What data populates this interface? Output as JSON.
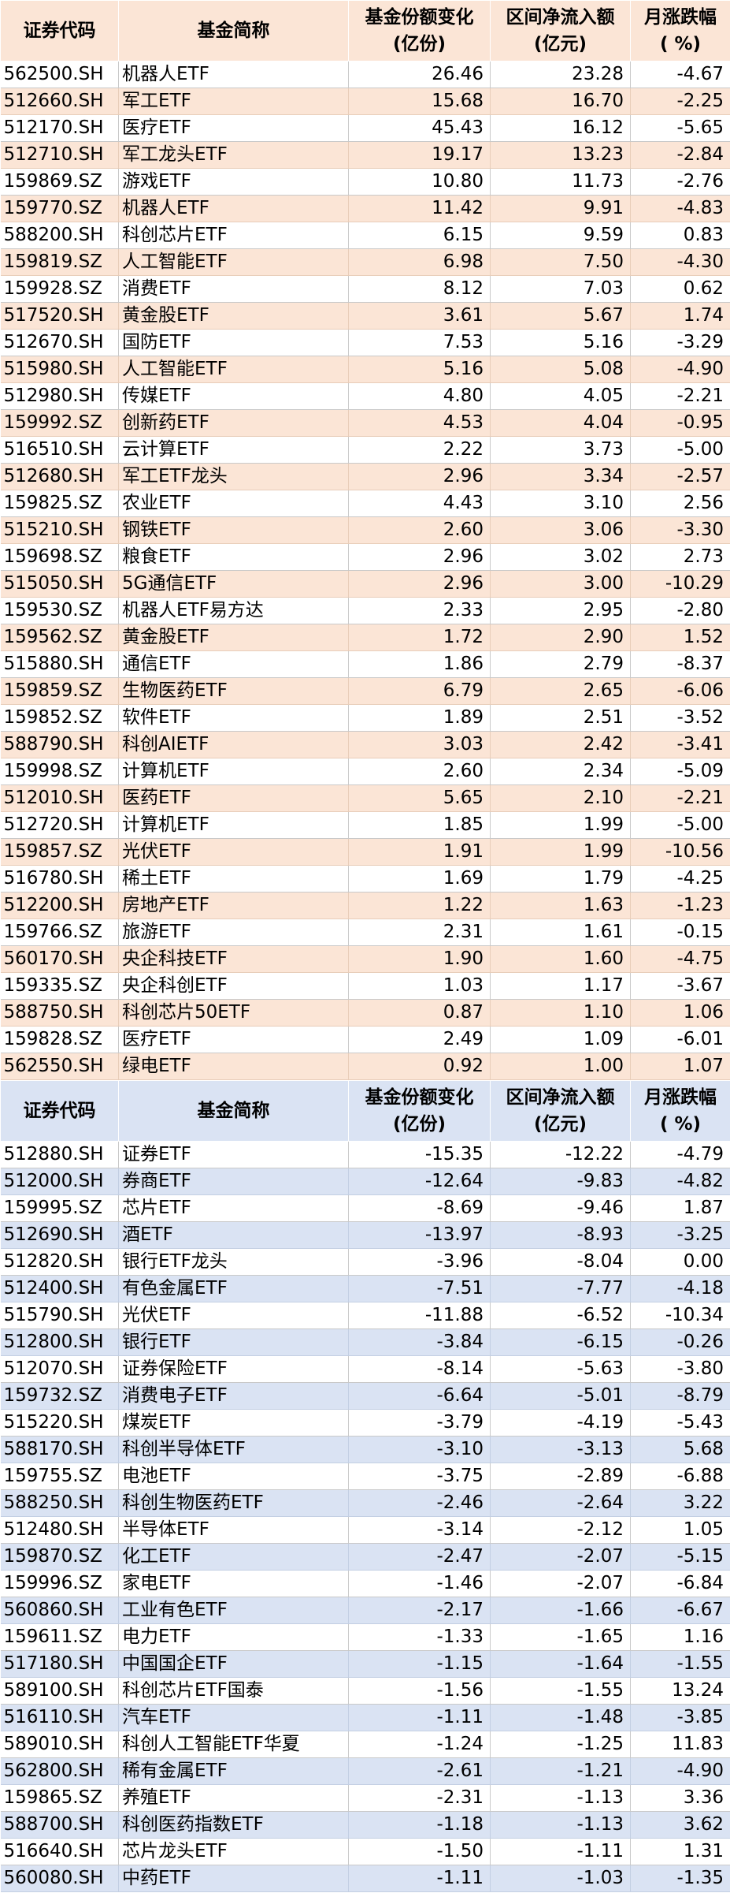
{
  "inflow_table": {
    "headers": [
      "证券代码",
      "基金简称",
      "基金份额变化",
      "(亿份)",
      "区间净流入额",
      "(亿元)",
      "月涨跌幅",
      "( %)"
    ],
    "rows": [
      [
        "562500.SH",
        "机器人ETF",
        "26.46",
        "23.28",
        "-4.67"
      ],
      [
        "512660.SH",
        "军工ETF",
        "15.68",
        "16.70",
        "-2.25"
      ],
      [
        "512170.SH",
        "医疗ETF",
        "45.43",
        "16.12",
        "-5.65"
      ],
      [
        "512710.SH",
        "军工龙头ETF",
        "19.17",
        "13.23",
        "-2.84"
      ],
      [
        "159869.SZ",
        "游戏ETF",
        "10.80",
        "11.73",
        "-2.76"
      ],
      [
        "159770.SZ",
        "机器人ETF",
        "11.42",
        "9.91",
        "-4.83"
      ],
      [
        "588200.SH",
        "科创芯片ETF",
        "6.15",
        "9.59",
        "0.83"
      ],
      [
        "159819.SZ",
        "人工智能ETF",
        "6.98",
        "7.50",
        "-4.30"
      ],
      [
        "159928.SZ",
        "消费ETF",
        "8.12",
        "7.03",
        "0.62"
      ],
      [
        "517520.SH",
        "黄金股ETF",
        "3.61",
        "5.67",
        "1.74"
      ],
      [
        "512670.SH",
        "国防ETF",
        "7.53",
        "5.16",
        "-3.29"
      ],
      [
        "515980.SH",
        "人工智能ETF",
        "5.16",
        "5.08",
        "-4.90"
      ],
      [
        "512980.SH",
        "传媒ETF",
        "4.80",
        "4.05",
        "-2.21"
      ],
      [
        "159992.SZ",
        "创新药ETF",
        "4.53",
        "4.04",
        "-0.95"
      ],
      [
        "516510.SH",
        "云计算ETF",
        "2.22",
        "3.73",
        "-5.00"
      ],
      [
        "512680.SH",
        "军工ETF龙头",
        "2.96",
        "3.34",
        "-2.57"
      ],
      [
        "159825.SZ",
        "农业ETF",
        "4.43",
        "3.10",
        "2.56"
      ],
      [
        "515210.SH",
        "钢铁ETF",
        "2.60",
        "3.06",
        "-3.30"
      ],
      [
        "159698.SZ",
        "粮食ETF",
        "2.96",
        "3.02",
        "2.73"
      ],
      [
        "515050.SH",
        "5G通信ETF",
        "2.96",
        "3.00",
        "-10.29"
      ],
      [
        "159530.SZ",
        "机器人ETF易方达",
        "2.33",
        "2.95",
        "-2.80"
      ],
      [
        "159562.SZ",
        "黄金股ETF",
        "1.72",
        "2.90",
        "1.52"
      ],
      [
        "515880.SH",
        "通信ETF",
        "1.86",
        "2.79",
        "-8.37"
      ],
      [
        "159859.SZ",
        "生物医药ETF",
        "6.79",
        "2.65",
        "-6.06"
      ],
      [
        "159852.SZ",
        "软件ETF",
        "1.89",
        "2.51",
        "-3.52"
      ],
      [
        "588790.SH",
        "科创AIETF",
        "3.03",
        "2.42",
        "-3.41"
      ],
      [
        "159998.SZ",
        "计算机ETF",
        "2.60",
        "2.34",
        "-5.09"
      ],
      [
        "512010.SH",
        "医药ETF",
        "5.65",
        "2.10",
        "-2.21"
      ],
      [
        "512720.SH",
        "计算机ETF",
        "1.85",
        "1.99",
        "-5.00"
      ],
      [
        "159857.SZ",
        "光伏ETF",
        "1.91",
        "1.99",
        "-10.56"
      ],
      [
        "516780.SH",
        "稀土ETF",
        "1.69",
        "1.79",
        "-4.25"
      ],
      [
        "512200.SH",
        "房地产ETF",
        "1.22",
        "1.63",
        "-1.23"
      ],
      [
        "159766.SZ",
        "旅游ETF",
        "2.31",
        "1.61",
        "-0.15"
      ],
      [
        "560170.SH",
        "央企科技ETF",
        "1.90",
        "1.60",
        "-4.75"
      ],
      [
        "159335.SZ",
        "央企科创ETF",
        "1.03",
        "1.17",
        "-3.67"
      ],
      [
        "588750.SH",
        "科创芯片50ETF",
        "0.87",
        "1.10",
        "1.06"
      ],
      [
        "159828.SZ",
        "医疗ETF",
        "2.49",
        "1.09",
        "-6.01"
      ],
      [
        "562550.SH",
        "绿电ETF",
        "0.92",
        "1.00",
        "1.07"
      ]
    ]
  },
  "outflow_table": {
    "headers": [
      "证券代码",
      "基金简称",
      "基金份额变化",
      "(亿份)",
      "区间净流入额",
      "(亿元)",
      "月涨跌幅",
      "( %)"
    ],
    "rows": [
      [
        "512880.SH",
        "证券ETF",
        "-15.35",
        "-12.22",
        "-4.79"
      ],
      [
        "512000.SH",
        "券商ETF",
        "-12.64",
        "-9.83",
        "-4.82"
      ],
      [
        "159995.SZ",
        "芯片ETF",
        "-8.69",
        "-9.46",
        "1.87"
      ],
      [
        "512690.SH",
        "酒ETF",
        "-13.97",
        "-8.93",
        "-3.25"
      ],
      [
        "512820.SH",
        "银行ETF龙头",
        "-3.96",
        "-8.04",
        "0.00"
      ],
      [
        "512400.SH",
        "有色金属ETF",
        "-7.51",
        "-7.77",
        "-4.18"
      ],
      [
        "515790.SH",
        "光伏ETF",
        "-11.88",
        "-6.52",
        "-10.34"
      ],
      [
        "512800.SH",
        "银行ETF",
        "-3.84",
        "-6.15",
        "-0.26"
      ],
      [
        "512070.SH",
        "证券保险ETF",
        "-8.14",
        "-5.63",
        "-3.80"
      ],
      [
        "159732.SZ",
        "消费电子ETF",
        "-6.64",
        "-5.01",
        "-8.79"
      ],
      [
        "515220.SH",
        "煤炭ETF",
        "-3.79",
        "-4.19",
        "-5.43"
      ],
      [
        "588170.SH",
        "科创半导体ETF",
        "-3.10",
        "-3.13",
        "5.68"
      ],
      [
        "159755.SZ",
        "电池ETF",
        "-3.75",
        "-2.89",
        "-6.88"
      ],
      [
        "588250.SH",
        "科创生物医药ETF",
        "-2.46",
        "-2.64",
        "3.22"
      ],
      [
        "512480.SH",
        "半导体ETF",
        "-3.14",
        "-2.12",
        "1.05"
      ],
      [
        "159870.SZ",
        "化工ETF",
        "-2.47",
        "-2.07",
        "-5.15"
      ],
      [
        "159996.SZ",
        "家电ETF",
        "-1.46",
        "-2.07",
        "-6.84"
      ],
      [
        "560860.SH",
        "工业有色ETF",
        "-2.17",
        "-1.66",
        "-6.67"
      ],
      [
        "159611.SZ",
        "电力ETF",
        "-1.33",
        "-1.65",
        "1.16"
      ],
      [
        "517180.SH",
        "中国国企ETF",
        "-1.15",
        "-1.64",
        "-1.55"
      ],
      [
        "589100.SH",
        "科创芯片ETF国泰",
        "-1.56",
        "-1.55",
        "13.24"
      ],
      [
        "516110.SH",
        "汽车ETF",
        "-1.11",
        "-1.48",
        "-3.85"
      ],
      [
        "589010.SH",
        "科创人工智能ETF华夏",
        "-1.24",
        "-1.25",
        "11.83"
      ],
      [
        "562800.SH",
        "稀有金属ETF",
        "-2.61",
        "-1.21",
        "-4.90"
      ],
      [
        "159865.SZ",
        "养殖ETF",
        "-2.31",
        "-1.13",
        "3.36"
      ],
      [
        "588700.SH",
        "科创医药指数ETF",
        "-1.18",
        "-1.13",
        "3.62"
      ],
      [
        "516640.SH",
        "芯片龙头ETF",
        "-1.50",
        "-1.11",
        "1.31"
      ],
      [
        "560080.SH",
        "中药ETF",
        "-1.11",
        "-1.03",
        "-1.35"
      ]
    ]
  }
}
